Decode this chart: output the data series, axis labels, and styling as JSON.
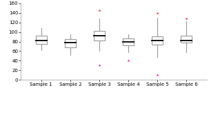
{
  "samples": {
    "Sample 1": {
      "q1": 75,
      "median": 83,
      "q3": 92,
      "whisker_low": 62,
      "whisker_high": 108,
      "min_outlier": null,
      "max_outlier": null
    },
    "Sample 2": {
      "q1": 68,
      "median": 78,
      "q3": 85,
      "whisker_low": 52,
      "whisker_high": 95,
      "min_outlier": null,
      "max_outlier": null
    },
    "Sample 3": {
      "q1": 82,
      "median": 93,
      "q3": 102,
      "whisker_low": 60,
      "whisker_high": 128,
      "min_outlier": 30,
      "max_outlier": 145
    },
    "Sample 4": {
      "q1": 72,
      "median": 80,
      "q3": 87,
      "whisker_low": 58,
      "whisker_high": 95,
      "min_outlier": 40,
      "max_outlier": null
    },
    "Sample 5": {
      "q1": 73,
      "median": 82,
      "q3": 91,
      "whisker_low": 48,
      "whisker_high": 130,
      "min_outlier": 10,
      "max_outlier": 140
    },
    "Sample 6": {
      "q1": 78,
      "median": 83,
      "q3": 93,
      "whisker_low": 58,
      "whisker_high": 122,
      "min_outlier": null,
      "max_outlier": 128
    }
  },
  "xlabels": [
    "Sample 1",
    "Sample 2",
    "Sample 3",
    "Sample 4",
    "Sample 5",
    "Sample 6"
  ],
  "ylim": [
    0,
    160
  ],
  "yticks": [
    0,
    20,
    40,
    60,
    80,
    100,
    120,
    140,
    160
  ],
  "box_color": "white",
  "box_edge_color": "#999999",
  "median_color": "#111111",
  "whisker_color": "#999999",
  "min_outlier_color": "#ff00cc",
  "max_outlier_color": "#ff2222",
  "background_color": "white",
  "box_width": 0.38,
  "tick_fontsize": 5.0,
  "legend_fontsize": 4.8
}
